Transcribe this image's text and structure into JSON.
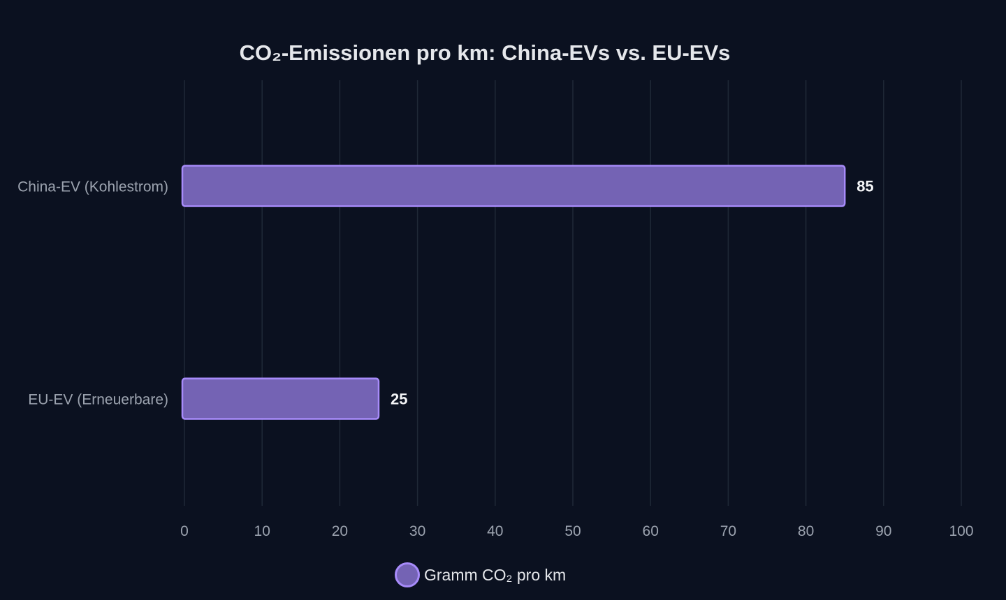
{
  "chart_data": {
    "type": "bar",
    "orientation": "horizontal",
    "title": "CO₂-Emissionen pro km: China-EVs vs. EU-EVs",
    "categories": [
      "China-EV (Kohlestrom)",
      "EU-EV (Erneuerbare)"
    ],
    "series": [
      {
        "name": "Gramm CO₂ pro km",
        "values": [
          85,
          25
        ]
      }
    ],
    "xlim": [
      0,
      100
    ],
    "x_ticks": [
      "0",
      "10",
      "20",
      "30",
      "40",
      "50",
      "60",
      "70",
      "80",
      "90",
      "100"
    ],
    "grid": true,
    "legend_position": "bottom-center",
    "colors": {
      "background": "#0b1120",
      "bar_fill": "#7463b4",
      "bar_stroke": "#a78bfa",
      "grid": "#1f2937",
      "title": "#e5e7eb",
      "axis_text": "#9ca3af",
      "value_text": "#f3f4f6"
    }
  }
}
